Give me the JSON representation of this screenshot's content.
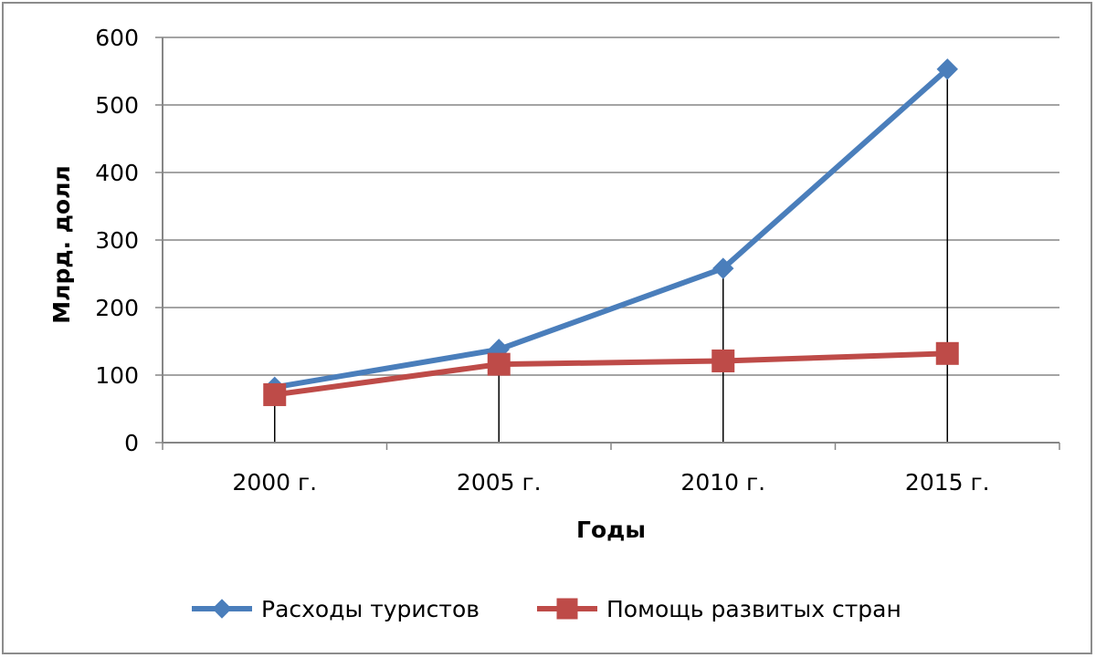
{
  "chart_data": {
    "type": "line",
    "title": "",
    "xlabel": "Годы",
    "ylabel": "Млрд. долл",
    "categories": [
      "2000 г.",
      "2005 г.",
      "2010 г.",
      "2015 г."
    ],
    "ylim": [
      0,
      600
    ],
    "yticks": [
      0,
      100,
      200,
      300,
      400,
      500,
      600
    ],
    "grid": true,
    "drop_lines": true,
    "legend_position": "bottom",
    "series": [
      {
        "name": "Расходы туристов",
        "values": [
          82,
          138,
          258,
          553
        ],
        "color": "#4a7ebb",
        "marker": "diamond"
      },
      {
        "name": "Помощь развитых стран",
        "values": [
          71,
          116,
          121,
          132
        ],
        "color": "#be4b48",
        "marker": "square"
      }
    ]
  }
}
